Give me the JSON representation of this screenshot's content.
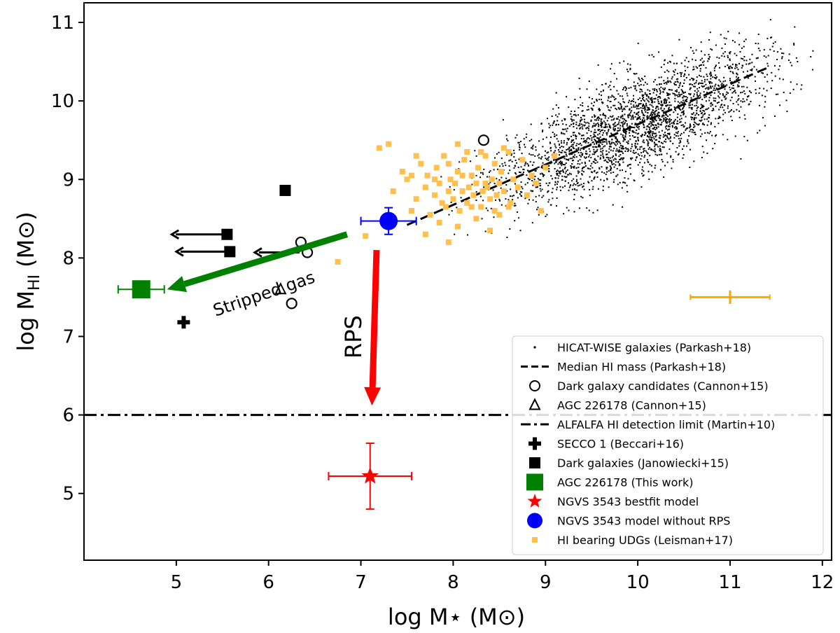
{
  "chart_data": {
    "type": "scatter",
    "xlabel": "log M⋆ (M⊙)",
    "ylabel_main": "log M",
    "ylabel_sub": "HI",
    "ylabel_unit": " (M⊙)",
    "xlim": [
      4.0,
      12.1
    ],
    "ylim": [
      4.15,
      11.25
    ],
    "xticks": [
      5,
      6,
      7,
      8,
      9,
      10,
      11,
      12
    ],
    "yticks": [
      5,
      6,
      7,
      8,
      9,
      10,
      11
    ],
    "median_line": {
      "x": [
        7.5,
        11.4
      ],
      "y": [
        8.42,
        10.42
      ]
    },
    "detection_limit_y": 6.0,
    "hicat_cloud": {
      "x_center": 10.0,
      "x_sd": 0.75,
      "intercept": 8.42,
      "slope": 0.513,
      "count": 2600
    },
    "dark_candidates": [
      [
        6.35,
        8.2
      ],
      [
        6.42,
        8.07
      ],
      [
        6.25,
        7.42
      ],
      [
        8.33,
        9.5
      ]
    ],
    "agc_cannon": [
      6.13,
      7.6
    ],
    "secco1": [
      5.08,
      7.18
    ],
    "dark_janowiecki": [
      [
        6.18,
        8.86
      ],
      [
        5.55,
        8.3
      ],
      [
        5.58,
        8.08
      ]
    ],
    "upper_limit_arrows": [
      {
        "from": [
          5.55,
          8.3
        ],
        "to": [
          4.95,
          8.3
        ]
      },
      {
        "from": [
          5.58,
          8.08
        ],
        "to": [
          5.0,
          8.08
        ]
      },
      {
        "from": [
          6.38,
          8.07
        ],
        "to": [
          5.85,
          8.07
        ]
      }
    ],
    "agc_this_work": {
      "x": 4.62,
      "y": 7.6,
      "xerr": 0.25
    },
    "ngvs_bestfit": {
      "x": 7.1,
      "y": 5.22,
      "xerr_lo": 0.45,
      "xerr_hi": 0.45,
      "yerr_lo": 0.42,
      "yerr_hi": 0.42
    },
    "ngvs_no_rps": {
      "x": 7.3,
      "y": 8.47,
      "xerr": 0.3,
      "yerr": 0.17
    },
    "typical_error": {
      "x": 11.0,
      "y": 7.5,
      "xerr": 0.43,
      "yerr": 0.05
    },
    "udgs": [
      [
        6.75,
        7.95
      ],
      [
        7.05,
        8.28
      ],
      [
        7.2,
        9.4
      ],
      [
        7.35,
        8.85
      ],
      [
        7.45,
        9.1
      ],
      [
        7.5,
        9.0
      ],
      [
        7.55,
        8.6
      ],
      [
        7.6,
        8.75
      ],
      [
        7.65,
        9.2
      ],
      [
        7.7,
        8.9
      ],
      [
        7.72,
        9.05
      ],
      [
        7.75,
        8.55
      ],
      [
        7.8,
        8.8
      ],
      [
        7.82,
        9.15
      ],
      [
        7.85,
        8.95
      ],
      [
        7.88,
        8.7
      ],
      [
        7.9,
        9.3
      ],
      [
        7.92,
        8.65
      ],
      [
        7.95,
        8.85
      ],
      [
        7.97,
        9.0
      ],
      [
        8.0,
        8.75
      ],
      [
        8.02,
        8.95
      ],
      [
        8.05,
        9.1
      ],
      [
        8.07,
        8.6
      ],
      [
        8.1,
        8.85
      ],
      [
        8.12,
        9.25
      ],
      [
        8.15,
        8.7
      ],
      [
        8.17,
        8.9
      ],
      [
        8.2,
        9.05
      ],
      [
        8.22,
        8.8
      ],
      [
        8.25,
        8.95
      ],
      [
        8.27,
        9.15
      ],
      [
        8.3,
        8.65
      ],
      [
        8.32,
        8.85
      ],
      [
        8.35,
        9.3
      ],
      [
        8.37,
        8.9
      ],
      [
        8.4,
        8.75
      ],
      [
        8.42,
        9.0
      ],
      [
        8.45,
        9.2
      ],
      [
        8.47,
        8.8
      ],
      [
        8.5,
        8.95
      ],
      [
        8.52,
        9.1
      ],
      [
        8.55,
        8.85
      ],
      [
        8.6,
        9.35
      ],
      [
        8.62,
        8.7
      ],
      [
        8.65,
        9.0
      ],
      [
        8.7,
        8.9
      ],
      [
        8.75,
        9.25
      ],
      [
        8.8,
        8.8
      ],
      [
        8.85,
        9.05
      ],
      [
        8.9,
        8.95
      ],
      [
        9.0,
        9.15
      ],
      [
        9.1,
        9.3
      ],
      [
        8.95,
        8.6
      ],
      [
        8.15,
        9.35
      ],
      [
        7.85,
        8.45
      ],
      [
        8.05,
        8.4
      ],
      [
        8.25,
        8.5
      ],
      [
        7.7,
        8.3
      ],
      [
        7.95,
        8.2
      ],
      [
        8.4,
        8.35
      ],
      [
        7.6,
        9.3
      ],
      [
        7.3,
        9.45
      ],
      [
        8.55,
        9.4
      ],
      [
        8.5,
        8.55
      ],
      [
        8.2,
        8.65
      ],
      [
        7.95,
        9.2
      ],
      [
        8.05,
        9.45
      ],
      [
        8.35,
        8.95
      ],
      [
        8.6,
        8.65
      ],
      [
        7.55,
        9.05
      ],
      [
        8.45,
        8.6
      ],
      [
        8.1,
        9.05
      ],
      [
        7.8,
        9.0
      ],
      [
        8.3,
        9.35
      ]
    ],
    "annotations": {
      "stripped_gas": "Stripped gas",
      "rps": "RPS"
    },
    "arrows": {
      "stripped_gas": {
        "from": [
          6.85,
          8.3
        ],
        "to": [
          4.9,
          7.6
        ]
      },
      "rps": {
        "from": [
          7.17,
          8.1
        ],
        "to": [
          7.12,
          6.12
        ]
      }
    },
    "legend": {
      "position": "lower-right",
      "entries": [
        "HICAT-WISE galaxies (Parkash+18)",
        "Median HI mass (Parkash+18)",
        "Dark galaxy candidates (Cannon+15)",
        "AGC 226178 (Cannon+15)",
        "ALFALFA HI detection limit (Martin+10)",
        "SECCO 1 (Beccari+16)",
        "Dark galaxies (Janowiecki+15)",
        "AGC 226178 (This work)",
        "NGVS 3543 bestfit model",
        "NGVS 3543 model without RPS",
        "HI bearing UDGs (Leisman+17)"
      ]
    },
    "colors": {
      "green": "#008000",
      "red": "#ff0000",
      "blue": "#0000ff",
      "udg": "#ffc04d",
      "error_orange": "#ffa500",
      "black": "#000000"
    }
  }
}
